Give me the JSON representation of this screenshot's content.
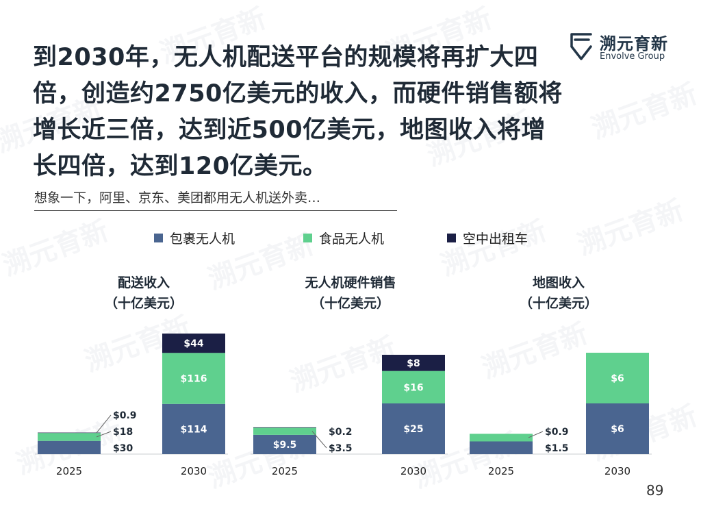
{
  "headline": "到2030年，无人机配送平台的规模将再扩大四倍，创造约2750亿美元的收入，而硬件销售额将增长近三倍，达到近500亿美元，地图收入将增长四倍，达到120亿美元。",
  "subline": "想象一下，阿里、京东、美团都用无人机送外卖…",
  "logo": {
    "cn": "溯元育新",
    "en": "Envolve Group",
    "icon": "envolve-logo-icon"
  },
  "page_number": "89",
  "colors": {
    "package": "#4a6590",
    "food": "#5fd08e",
    "taxi": "#1b1f45",
    "text": "#1f2a36"
  },
  "legend": [
    {
      "label": "包裹无人机",
      "color": "#4a6590"
    },
    {
      "label": "食品无人机",
      "color": "#5fd08e"
    },
    {
      "label": "空中出租车",
      "color": "#1b1f45"
    }
  ],
  "chart_data": [
    {
      "type": "bar",
      "stacked": true,
      "title": "配送收入",
      "subtitle": "（十亿美元）",
      "categories": [
        "2025",
        "2030"
      ],
      "series": [
        {
          "name": "包裹无人机",
          "values": [
            30,
            114
          ],
          "labels": [
            "$30",
            "$114"
          ]
        },
        {
          "name": "食品无人机",
          "values": [
            18,
            116
          ],
          "labels": [
            "$18",
            "$116"
          ]
        },
        {
          "name": "空中出租车",
          "values": [
            0.9,
            44
          ],
          "labels": [
            "$0.9",
            "$44"
          ]
        }
      ]
    },
    {
      "type": "bar",
      "stacked": true,
      "title": "无人机硬件销售",
      "subtitle": "（十亿美元）",
      "categories": [
        "2025",
        "2030"
      ],
      "series": [
        {
          "name": "包裹无人机",
          "values": [
            9.5,
            25
          ],
          "labels": [
            "$9.5",
            "$25"
          ]
        },
        {
          "name": "食品无人机",
          "values": [
            3.5,
            16
          ],
          "labels": [
            "$3.5",
            "$16"
          ]
        },
        {
          "name": "空中出租车",
          "values": [
            0.2,
            8
          ],
          "labels": [
            "$0.2",
            "$8"
          ]
        }
      ]
    },
    {
      "type": "bar",
      "stacked": true,
      "title": "地图收入",
      "subtitle": "（十亿美元）",
      "categories": [
        "2025",
        "2030"
      ],
      "series": [
        {
          "name": "包裹无人机",
          "values": [
            1.5,
            6
          ],
          "labels": [
            "$1.5",
            "$6"
          ]
        },
        {
          "name": "食品无人机",
          "values": [
            0.9,
            6
          ],
          "labels": [
            "$0.9",
            "$6"
          ]
        }
      ]
    }
  ]
}
